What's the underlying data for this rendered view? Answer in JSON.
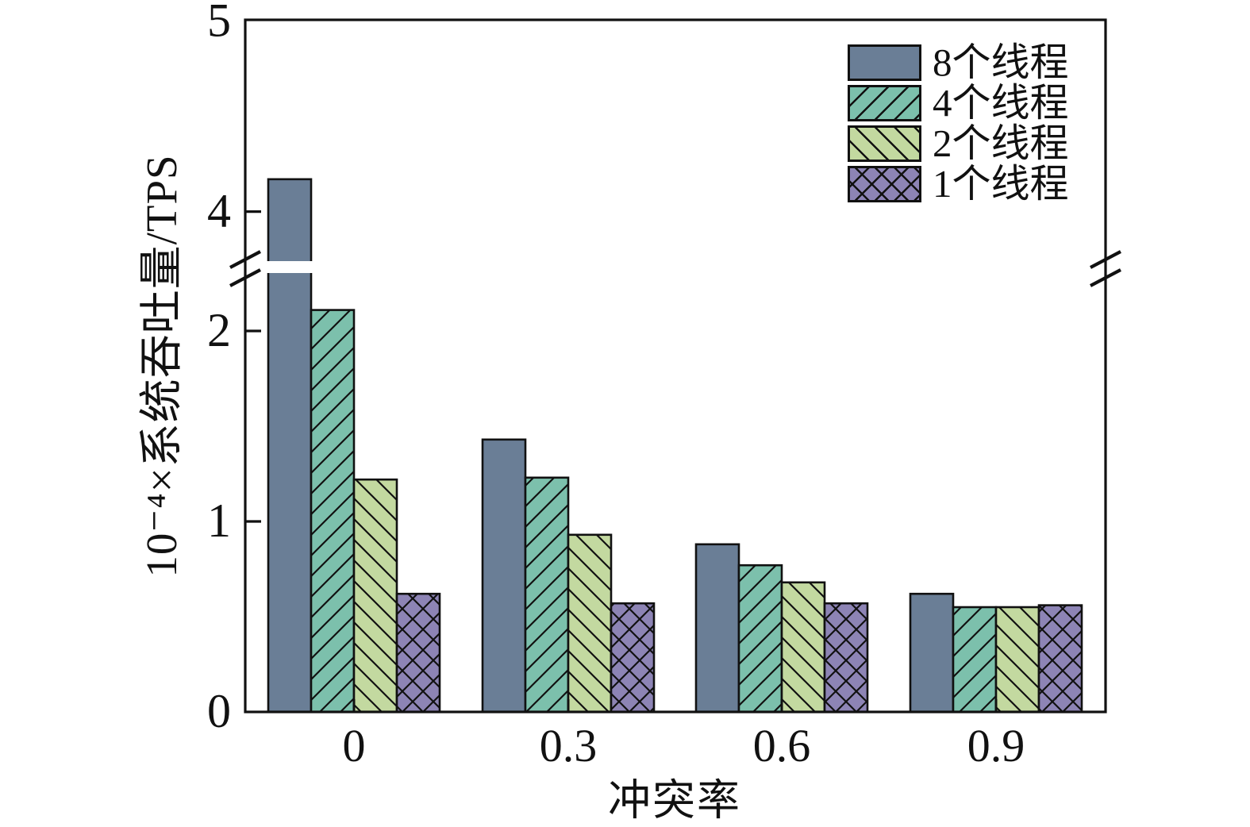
{
  "chart_data": {
    "type": "bar",
    "title": "",
    "xlabel": "冲突率",
    "ylabel": "10⁻⁴×系统吞吐量/TPS",
    "categories": [
      "0",
      "0.3",
      "0.6",
      "0.9"
    ],
    "series": [
      {
        "name": "8个线程",
        "color": "#6A7E96",
        "hatch": "none",
        "values": [
          4.17,
          1.43,
          0.88,
          0.62
        ]
      },
      {
        "name": "4个线程",
        "color": "#7CC0AC",
        "hatch": "/",
        "values": [
          2.11,
          1.23,
          0.77,
          0.55
        ]
      },
      {
        "name": "2个线程",
        "color": "#C3D9A0",
        "hatch": "\\",
        "values": [
          1.22,
          0.93,
          0.68,
          0.55
        ]
      },
      {
        "name": "1个线程",
        "color": "#8D84B5",
        "hatch": "x",
        "values": [
          0.62,
          0.57,
          0.57,
          0.56
        ]
      }
    ],
    "y_ticks": {
      "values": [
        0,
        1,
        2,
        4,
        5
      ],
      "labels": [
        "0",
        "1",
        "2",
        "4",
        "5"
      ]
    },
    "y_axis_break": {
      "from": 2.3,
      "to": 3.74
    },
    "ylim": [
      0,
      5
    ],
    "grid": false,
    "legend_position": "top-right",
    "axis_color": "#111111",
    "hatch_color": "#111111"
  }
}
